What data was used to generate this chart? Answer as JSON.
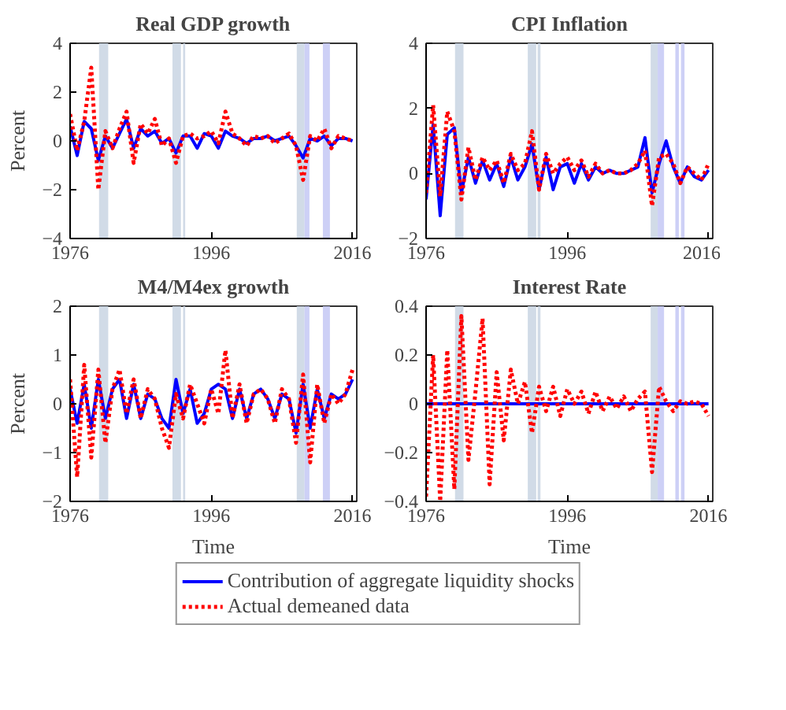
{
  "chart_data": [
    {
      "type": "line",
      "title": "Real GDP growth",
      "ylabel": "Percent",
      "x": [
        1976,
        1977,
        1978,
        1979,
        1980,
        1981,
        1982,
        1983,
        1984,
        1985,
        1986,
        1987,
        1988,
        1989,
        1990,
        1991,
        1992,
        1993,
        1994,
        1995,
        1996,
        1997,
        1998,
        1999,
        2000,
        2001,
        2002,
        2003,
        2004,
        2005,
        2006,
        2007,
        2008,
        2009,
        2010,
        2011,
        2012,
        2013,
        2014,
        2015,
        2016
      ],
      "xlim": [
        1976,
        2016.6
      ],
      "ylim": [
        -4,
        4
      ],
      "xticks": [
        1976,
        1996,
        2016
      ],
      "yticks": [
        -4,
        -2,
        0,
        2,
        4
      ],
      "series": [
        {
          "color": "#0000ff",
          "line_style": "solid",
          "values": [
            0.6,
            -0.6,
            0.8,
            0.5,
            -0.8,
            0.2,
            -0.3,
            0.3,
            0.9,
            -0.3,
            0.5,
            0.2,
            0.4,
            -0.1,
            0.1,
            -0.5,
            0.2,
            0.2,
            -0.3,
            0.3,
            0.2,
            -0.3,
            0.4,
            0.2,
            0.1,
            -0.1,
            0.1,
            0.1,
            0.2,
            0.0,
            0.1,
            0.2,
            -0.2,
            -0.7,
            0.1,
            0.0,
            0.2,
            -0.2,
            0.1,
            0.1,
            0.0
          ]
        },
        {
          "color": "#ff0000",
          "line_style": "dotted",
          "values": [
            1.1,
            -0.4,
            0.8,
            3.0,
            -2.0,
            0.4,
            -0.3,
            0.5,
            1.2,
            -0.9,
            0.7,
            0.3,
            0.9,
            -0.2,
            0.1,
            -0.9,
            0.2,
            0.3,
            0.1,
            0.2,
            0.4,
            -0.1,
            1.2,
            0.3,
            0.1,
            -0.2,
            0.2,
            0.1,
            0.2,
            -0.1,
            0.1,
            0.3,
            -0.2,
            -1.6,
            0.2,
            0.0,
            0.5,
            -0.3,
            0.2,
            0.1,
            0.0
          ]
        }
      ],
      "bands": [
        {
          "axis": "x",
          "from": 1980.1,
          "to": 1981.4,
          "color": "#c9d5e3"
        },
        {
          "axis": "x",
          "from": 1990.5,
          "to": 1991.7,
          "color": "#c9d5e3"
        },
        {
          "axis": "x",
          "from": 1992.0,
          "to": 1992.3,
          "color": "#c9d5e3"
        },
        {
          "axis": "x",
          "from": 2008.1,
          "to": 2009.2,
          "color": "#c9d5e3"
        },
        {
          "axis": "x",
          "from": 2009.2,
          "to": 2009.9,
          "color": "#c4c8f5"
        },
        {
          "axis": "x",
          "from": 2011.8,
          "to": 2012.8,
          "color": "#c4c8f5"
        }
      ]
    },
    {
      "type": "line",
      "title": "CPI Inflation",
      "x": [
        1976,
        1977,
        1978,
        1979,
        1980,
        1981,
        1982,
        1983,
        1984,
        1985,
        1986,
        1987,
        1988,
        1989,
        1990,
        1991,
        1992,
        1993,
        1994,
        1995,
        1996,
        1997,
        1998,
        1999,
        2000,
        2001,
        2002,
        2003,
        2004,
        2005,
        2006,
        2007,
        2008,
        2009,
        2010,
        2011,
        2012,
        2013,
        2014,
        2015,
        2016
      ],
      "xlim": [
        1976,
        2016.6
      ],
      "ylim": [
        -2,
        4
      ],
      "xticks": [
        1976,
        1996,
        2016
      ],
      "yticks": [
        -2,
        0,
        2,
        4
      ],
      "series": [
        {
          "color": "#0000ff",
          "line_style": "solid",
          "values": [
            -0.8,
            1.5,
            -1.3,
            1.2,
            1.4,
            -0.6,
            0.5,
            -0.3,
            0.4,
            -0.2,
            0.3,
            -0.4,
            0.5,
            -0.2,
            0.2,
            0.9,
            -0.5,
            0.5,
            -0.5,
            0.2,
            0.3,
            -0.3,
            0.3,
            -0.2,
            0.2,
            0.0,
            0.1,
            0.0,
            0.0,
            0.1,
            0.2,
            1.1,
            -0.6,
            0.3,
            1.0,
            0.2,
            -0.3,
            0.2,
            -0.1,
            -0.2,
            0.1
          ]
        },
        {
          "color": "#ff0000",
          "line_style": "dotted",
          "values": [
            -0.6,
            2.1,
            -0.7,
            1.9,
            1.3,
            -0.8,
            0.8,
            -0.2,
            0.5,
            0.1,
            0.4,
            -0.3,
            0.6,
            0.1,
            0.3,
            1.3,
            -0.5,
            0.6,
            0.0,
            0.3,
            0.5,
            0.1,
            0.4,
            -0.1,
            0.3,
            0.0,
            0.1,
            0.0,
            0.0,
            0.1,
            0.3,
            0.7,
            -1.0,
            0.5,
            0.6,
            0.3,
            -0.3,
            0.2,
            0.0,
            -0.2,
            0.3
          ]
        }
      ],
      "bands": [
        {
          "axis": "x",
          "from": 1980.1,
          "to": 1981.3,
          "color": "#c9d5e3"
        },
        {
          "axis": "x",
          "from": 1990.4,
          "to": 1991.6,
          "color": "#c9d5e3"
        },
        {
          "axis": "x",
          "from": 1991.8,
          "to": 1992.2,
          "color": "#c9d5e3"
        },
        {
          "axis": "x",
          "from": 2007.8,
          "to": 2008.8,
          "color": "#c9d5e3"
        },
        {
          "axis": "x",
          "from": 2008.8,
          "to": 2009.7,
          "color": "#c4c8f5"
        },
        {
          "axis": "x",
          "from": 2011.3,
          "to": 2011.8,
          "color": "#c4c8f5"
        },
        {
          "axis": "x",
          "from": 2012.1,
          "to": 2012.6,
          "color": "#c4c8f5"
        }
      ]
    },
    {
      "type": "line",
      "title": "M4/M4ex growth",
      "ylabel": "Percent",
      "xlabel": "Time",
      "legend": "bottom",
      "x": [
        1976,
        1977,
        1978,
        1979,
        1980,
        1981,
        1982,
        1983,
        1984,
        1985,
        1986,
        1987,
        1988,
        1989,
        1990,
        1991,
        1992,
        1993,
        1994,
        1995,
        1996,
        1997,
        1998,
        1999,
        2000,
        2001,
        2002,
        2003,
        2004,
        2005,
        2006,
        2007,
        2008,
        2009,
        2010,
        2011,
        2012,
        2013,
        2014,
        2015,
        2016
      ],
      "xlim": [
        1976,
        2016.6
      ],
      "ylim": [
        -2,
        2
      ],
      "xticks": [
        1976,
        1996,
        2016
      ],
      "yticks": [
        -2,
        -1,
        0,
        1,
        2
      ],
      "series": [
        {
          "name": "Contribution of aggregate liquidity shocks",
          "color": "#0000ff",
          "line_style": "solid",
          "values": [
            0.3,
            -0.4,
            0.4,
            -0.5,
            0.5,
            -0.3,
            0.3,
            0.5,
            -0.3,
            0.4,
            -0.3,
            0.2,
            0.1,
            -0.3,
            -0.5,
            0.5,
            -0.2,
            0.3,
            -0.4,
            -0.2,
            0.3,
            0.4,
            0.3,
            -0.3,
            0.3,
            -0.3,
            0.2,
            0.3,
            0.1,
            -0.3,
            0.2,
            0.1,
            -0.6,
            0.4,
            -0.5,
            0.3,
            -0.3,
            0.2,
            0.1,
            0.2,
            0.5
          ]
        },
        {
          "name": "Actual demeaned data",
          "color": "#ff0000",
          "line_style": "dotted",
          "values": [
            0.5,
            -1.5,
            0.8,
            -1.1,
            0.7,
            -0.8,
            0.3,
            0.7,
            -0.2,
            0.5,
            -0.3,
            0.3,
            0.1,
            -0.5,
            -0.9,
            0.2,
            -0.3,
            0.4,
            0.0,
            -0.4,
            0.3,
            -0.2,
            1.1,
            -0.3,
            0.4,
            -0.4,
            0.2,
            0.3,
            0.1,
            -0.4,
            0.3,
            0.1,
            -0.8,
            0.6,
            -1.2,
            0.4,
            -0.4,
            0.2,
            0.0,
            0.2,
            0.7
          ]
        }
      ],
      "bands": [
        {
          "axis": "x",
          "from": 1980.1,
          "to": 1981.4,
          "color": "#c9d5e3"
        },
        {
          "axis": "x",
          "from": 1990.5,
          "to": 1991.7,
          "color": "#c9d5e3"
        },
        {
          "axis": "x",
          "from": 1992.0,
          "to": 1992.3,
          "color": "#c9d5e3"
        },
        {
          "axis": "x",
          "from": 2008.1,
          "to": 2009.2,
          "color": "#c9d5e3"
        },
        {
          "axis": "x",
          "from": 2009.2,
          "to": 2009.9,
          "color": "#c4c8f5"
        },
        {
          "axis": "x",
          "from": 2011.8,
          "to": 2012.8,
          "color": "#c4c8f5"
        }
      ]
    },
    {
      "type": "line",
      "title": "Interest Rate",
      "xlabel": "Time",
      "x": [
        1976,
        1977,
        1978,
        1979,
        1980,
        1981,
        1982,
        1983,
        1984,
        1985,
        1986,
        1987,
        1988,
        1989,
        1990,
        1991,
        1992,
        1993,
        1994,
        1995,
        1996,
        1997,
        1998,
        1999,
        2000,
        2001,
        2002,
        2003,
        2004,
        2005,
        2006,
        2007,
        2008,
        2009,
        2010,
        2011,
        2012,
        2013,
        2014,
        2015,
        2016
      ],
      "xlim": [
        1976,
        2016.6
      ],
      "ylim": [
        -0.4,
        0.4
      ],
      "xticks": [
        1976,
        1996,
        2016
      ],
      "yticks": [
        -0.4,
        -0.2,
        0,
        0.2,
        0.4
      ],
      "series": [
        {
          "color": "#0000ff",
          "line_style": "solid",
          "values": [
            0,
            0,
            0,
            0,
            0,
            0,
            0,
            0,
            0,
            0,
            0,
            0,
            0,
            0,
            0,
            0,
            0,
            0,
            0,
            0,
            0,
            0,
            0,
            0,
            0,
            0,
            0,
            0,
            0,
            0,
            0,
            0,
            0,
            0,
            0,
            0,
            0,
            0,
            0,
            0,
            0
          ]
        },
        {
          "color": "#ff0000",
          "line_style": "dotted",
          "values": [
            -0.38,
            0.2,
            -0.4,
            0.22,
            -0.35,
            0.36,
            -0.23,
            0.05,
            0.35,
            -0.33,
            0.13,
            -0.15,
            0.14,
            0.0,
            0.09,
            -0.12,
            0.07,
            -0.03,
            0.07,
            -0.05,
            0.06,
            0.0,
            0.05,
            -0.04,
            0.05,
            -0.03,
            0.03,
            -0.02,
            0.03,
            -0.03,
            0.02,
            0.05,
            -0.28,
            0.07,
            0.01,
            -0.03,
            0.01,
            0.0,
            0.01,
            0.0,
            -0.05
          ]
        }
      ],
      "bands": [
        {
          "axis": "x",
          "from": 1980.1,
          "to": 1981.3,
          "color": "#c9d5e3"
        },
        {
          "axis": "x",
          "from": 1990.4,
          "to": 1991.6,
          "color": "#c9d5e3"
        },
        {
          "axis": "x",
          "from": 1991.8,
          "to": 1992.2,
          "color": "#c9d5e3"
        },
        {
          "axis": "x",
          "from": 2007.8,
          "to": 2008.8,
          "color": "#c9d5e3"
        },
        {
          "axis": "x",
          "from": 2008.8,
          "to": 2009.7,
          "color": "#c4c8f5"
        },
        {
          "axis": "x",
          "from": 2011.3,
          "to": 2011.8,
          "color": "#c4c8f5"
        },
        {
          "axis": "x",
          "from": 2012.1,
          "to": 2012.6,
          "color": "#c4c8f5"
        }
      ]
    }
  ]
}
